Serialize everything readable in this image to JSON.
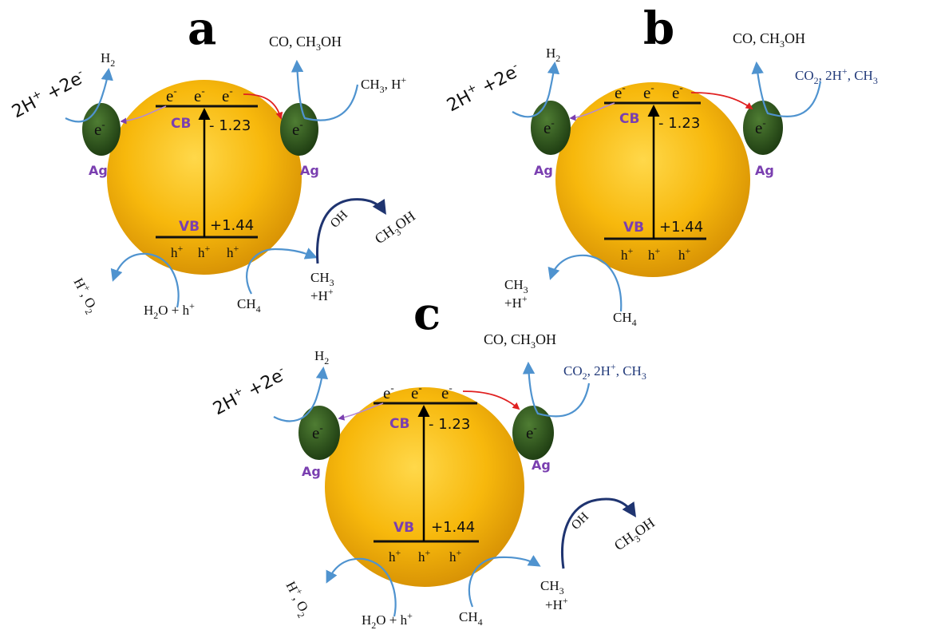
{
  "colors": {
    "particle": "#f7b80c",
    "ag": "#2f5a1e",
    "band_label": "#7a3fb0",
    "arrow_blue": "#4f93cf",
    "arrow_navy": "#1f3470",
    "electron_path": "#e02020"
  },
  "panels": [
    {
      "letter": "a",
      "cb": "CB",
      "vb": "VB",
      "cb_potential": "- 1.23",
      "vb_potential": "+1.44",
      "electron": "e",
      "hole": "h",
      "ag": "Ag",
      "left_reactant": "2H",
      "left_reactant_tail": " +2e",
      "left_product": "H",
      "right_product": "CO, CH",
      "right_product_tail": "OH",
      "right_reactant": "CH",
      "right_reactant_tail": ", H",
      "oxidation_product": "H",
      "oxidation_product_tail": ", O",
      "water": "H",
      "water_tail": "O + h",
      "methane": "CH",
      "methyl": "CH",
      "methyl_proton": "+H",
      "hydroxyl": "OH",
      "methanol": "CH",
      "methanol_tail": "OH"
    },
    {
      "letter": "b",
      "cb": "CB",
      "vb": "VB",
      "cb_potential": "- 1.23",
      "vb_potential": "+1.44",
      "electron": "e",
      "hole": "h",
      "ag": "Ag",
      "left_reactant": "2H",
      "left_reactant_tail": " +2e",
      "left_product": "H",
      "right_product": "CO, CH",
      "right_product_tail": "OH",
      "right_reactant": "CO",
      "right_reactant_tail": ", 2H",
      "right_reactant_tail2": ", CH",
      "methane": "CH",
      "methyl": "CH",
      "methyl_proton": "+H"
    },
    {
      "letter": "c",
      "cb": "CB",
      "vb": "VB",
      "cb_potential": "- 1.23",
      "vb_potential": "+1.44",
      "electron": "e",
      "hole": "h",
      "ag": "Ag",
      "left_reactant": "2H",
      "left_reactant_tail": " +2e",
      "left_product": "H",
      "right_product": "CO, CH",
      "right_product_tail": "OH",
      "right_reactant": "CO",
      "right_reactant_tail": ", 2H",
      "right_reactant_tail2": ", CH",
      "oxidation_product": "H",
      "oxidation_product_tail": ", O",
      "water": "H",
      "water_tail": "O + h",
      "methane": "CH",
      "methyl": "CH",
      "methyl_proton": "+H",
      "hydroxyl": "OH",
      "methanol": "CH",
      "methanol_tail": "OH"
    }
  ]
}
